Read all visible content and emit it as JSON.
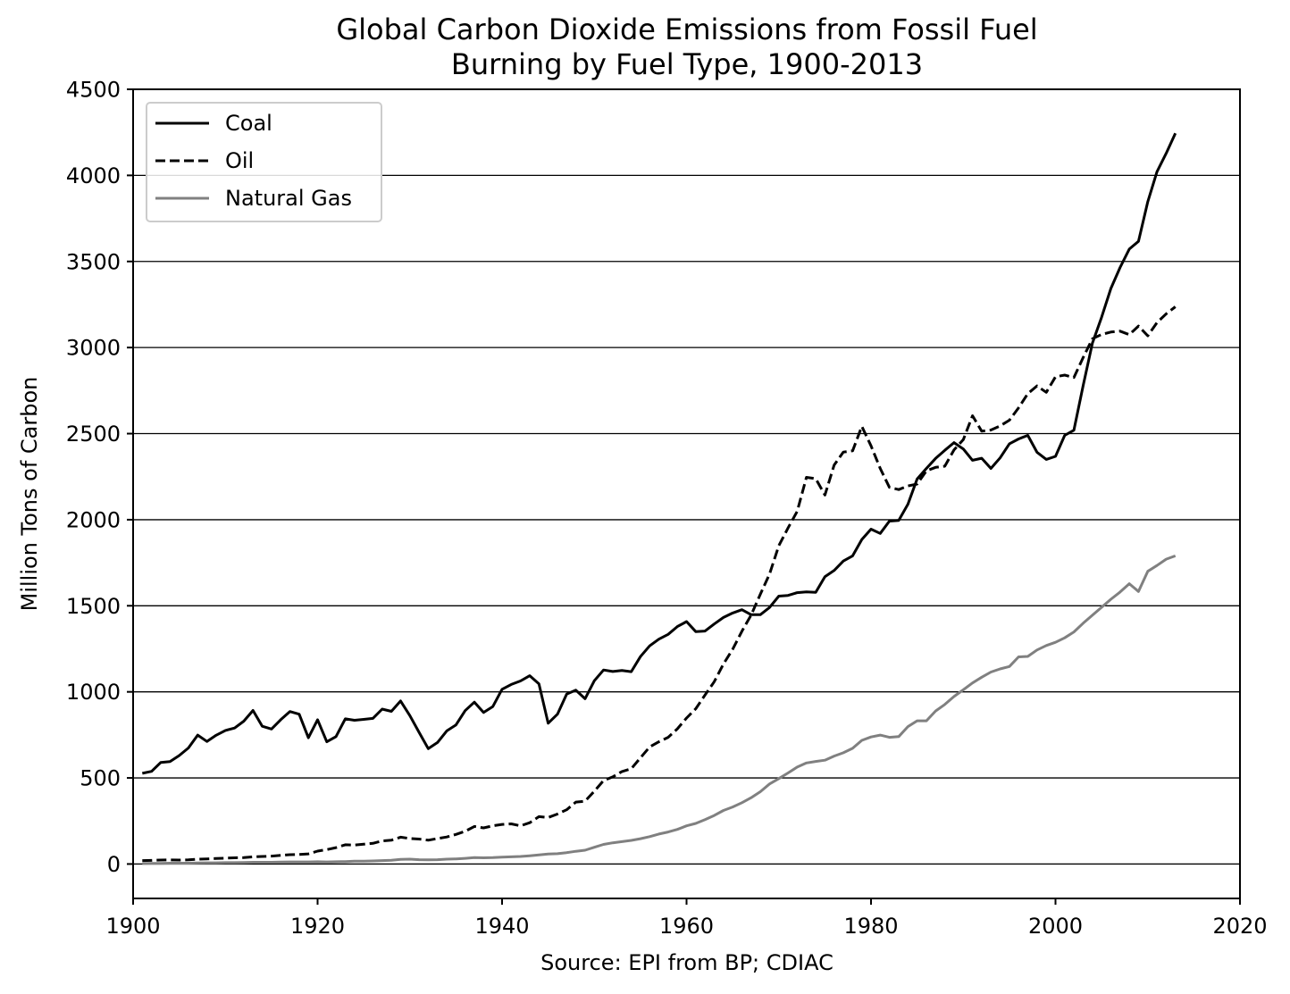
{
  "chart_data": {
    "type": "line",
    "title": "Global Carbon Dioxide Emissions from Fossil Fuel Burning by Fuel Type, 1900-2013",
    "title_lines": [
      "Global Carbon Dioxide Emissions from Fossil Fuel",
      "Burning by Fuel Type, 1900-2013"
    ],
    "xlabel": "Source: EPI from BP; CDIAC",
    "ylabel": "Million Tons of Carbon",
    "xlim": [
      1900,
      2020
    ],
    "ylim": [
      -200,
      4500
    ],
    "xticks": [
      1900,
      1920,
      1940,
      1960,
      1980,
      2000,
      2020
    ],
    "yticks": [
      0,
      500,
      1000,
      1500,
      2000,
      2500,
      3000,
      3500,
      4000,
      4500
    ],
    "grid": "horizontal",
    "legend_position": "upper-left",
    "x": [
      1901,
      1902,
      1903,
      1904,
      1905,
      1906,
      1907,
      1908,
      1909,
      1910,
      1911,
      1912,
      1913,
      1914,
      1915,
      1916,
      1917,
      1918,
      1919,
      1920,
      1921,
      1922,
      1923,
      1924,
      1925,
      1926,
      1927,
      1928,
      1929,
      1930,
      1931,
      1932,
      1933,
      1934,
      1935,
      1936,
      1937,
      1938,
      1939,
      1940,
      1941,
      1942,
      1943,
      1944,
      1945,
      1946,
      1947,
      1948,
      1949,
      1950,
      1951,
      1952,
      1953,
      1954,
      1955,
      1956,
      1957,
      1958,
      1959,
      1960,
      1961,
      1962,
      1963,
      1964,
      1965,
      1966,
      1967,
      1968,
      1969,
      1970,
      1971,
      1972,
      1973,
      1974,
      1975,
      1976,
      1977,
      1978,
      1979,
      1980,
      1981,
      1982,
      1983,
      1984,
      1985,
      1986,
      1987,
      1988,
      1989,
      1990,
      1991,
      1992,
      1993,
      1994,
      1995,
      1996,
      1997,
      1998,
      1999,
      2000,
      2001,
      2002,
      2003,
      2004,
      2005,
      2006,
      2007,
      2008,
      2009,
      2010,
      2011,
      2012,
      2013
    ],
    "series": [
      {
        "name": "Coal",
        "style": "solid",
        "color": "#000000",
        "values": [
          527,
          538,
          590,
          595,
          630,
          674,
          749,
          712,
          748,
          776,
          790,
          830,
          892,
          800,
          784,
          838,
          886,
          870,
          733,
          838,
          710,
          740,
          843,
          835,
          840,
          846,
          900,
          887,
          947,
          862,
          765,
          670,
          706,
          773,
          808,
          891,
          940,
          880,
          915,
          1015,
          1043,
          1063,
          1094,
          1046,
          818,
          870,
          987,
          1010,
          960,
          1065,
          1127,
          1118,
          1124,
          1117,
          1205,
          1267,
          1306,
          1334,
          1379,
          1408,
          1350,
          1353,
          1394,
          1432,
          1458,
          1477,
          1448,
          1448,
          1490,
          1556,
          1560,
          1576,
          1581,
          1578,
          1669,
          1705,
          1760,
          1790,
          1885,
          1945,
          1920,
          1992,
          1996,
          2090,
          2236,
          2298,
          2356,
          2403,
          2448,
          2411,
          2345,
          2357,
          2298,
          2359,
          2441,
          2469,
          2490,
          2392,
          2350,
          2368,
          2490,
          2520,
          2780,
          3025,
          3176,
          3343,
          3465,
          3572,
          3617,
          3847,
          4021,
          4128,
          4245
        ]
      },
      {
        "name": "Oil",
        "style": "dashed",
        "color": "#000000",
        "values": [
          20,
          21,
          23,
          24,
          23,
          24,
          28,
          30,
          32,
          34,
          36,
          37,
          42,
          44,
          46,
          50,
          54,
          55,
          59,
          75,
          84,
          95,
          112,
          110,
          115,
          120,
          134,
          138,
          156,
          148,
          145,
          138,
          148,
          157,
          172,
          190,
          218,
          210,
          222,
          230,
          233,
          222,
          240,
          275,
          270,
          290,
          315,
          360,
          365,
          423,
          485,
          506,
          537,
          553,
          617,
          680,
          710,
          736,
          785,
          848,
          902,
          982,
          1059,
          1162,
          1247,
          1352,
          1446,
          1567,
          1684,
          1849,
          1952,
          2049,
          2246,
          2238,
          2143,
          2317,
          2393,
          2400,
          2542,
          2429,
          2298,
          2188,
          2175,
          2196,
          2207,
          2284,
          2304,
          2311,
          2405,
          2465,
          2604,
          2514,
          2521,
          2545,
          2578,
          2650,
          2732,
          2777,
          2740,
          2830,
          2840,
          2826,
          2942,
          3051,
          3076,
          3090,
          3095,
          3075,
          3125,
          3068,
          3145,
          3196,
          3237
        ]
      },
      {
        "name": "Natural Gas",
        "style": "solid",
        "color": "#808080",
        "values": [
          3,
          4,
          4,
          5,
          5,
          5,
          6,
          7,
          7,
          8,
          8,
          9,
          10,
          10,
          10,
          11,
          12,
          12,
          12,
          13,
          12,
          13,
          14,
          17,
          17,
          18,
          20,
          22,
          27,
          28,
          25,
          24,
          25,
          28,
          30,
          33,
          37,
          36,
          37,
          40,
          42,
          44,
          48,
          53,
          58,
          60,
          66,
          74,
          80,
          97,
          114,
          123,
          130,
          137,
          147,
          159,
          174,
          186,
          201,
          222,
          236,
          258,
          282,
          311,
          331,
          356,
          385,
          420,
          465,
          496,
          529,
          563,
          587,
          596,
          603,
          627,
          646,
          672,
          718,
          738,
          749,
          736,
          740,
          798,
          832,
          832,
          889,
          927,
          973,
          1012,
          1052,
          1085,
          1115,
          1133,
          1147,
          1203,
          1206,
          1243,
          1269,
          1288,
          1314,
          1348,
          1399,
          1445,
          1491,
          1538,
          1580,
          1628,
          1583,
          1700,
          1734,
          1771,
          1790
        ]
      }
    ]
  }
}
